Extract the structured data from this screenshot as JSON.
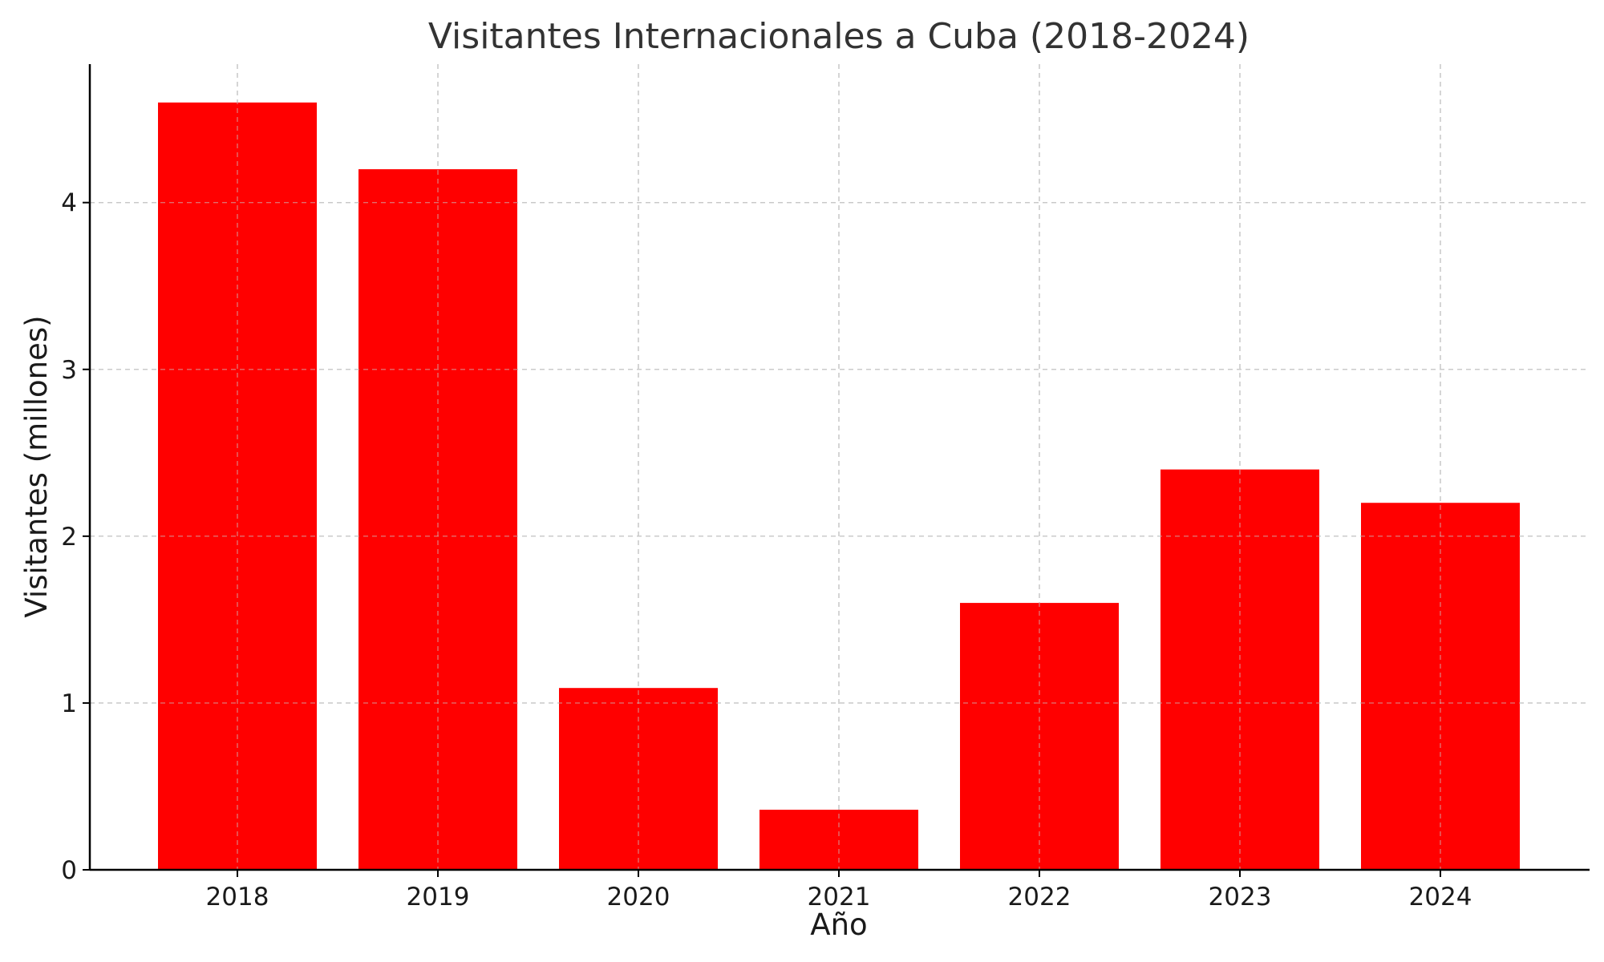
{
  "chart_data": {
    "type": "bar",
    "title": "Visitantes Internacionales a Cuba (2018-2024)",
    "xlabel": "Año",
    "ylabel": "Visitantes (millones)",
    "categories": [
      "2018",
      "2019",
      "2020",
      "2021",
      "2022",
      "2023",
      "2024"
    ],
    "values": [
      4.6,
      4.2,
      1.09,
      0.36,
      1.6,
      2.4,
      2.2
    ],
    "ylim": [
      0,
      4.83
    ],
    "yticks": [
      0,
      1,
      2,
      3,
      4
    ],
    "grid": true,
    "bar_color": "#ff0000"
  }
}
